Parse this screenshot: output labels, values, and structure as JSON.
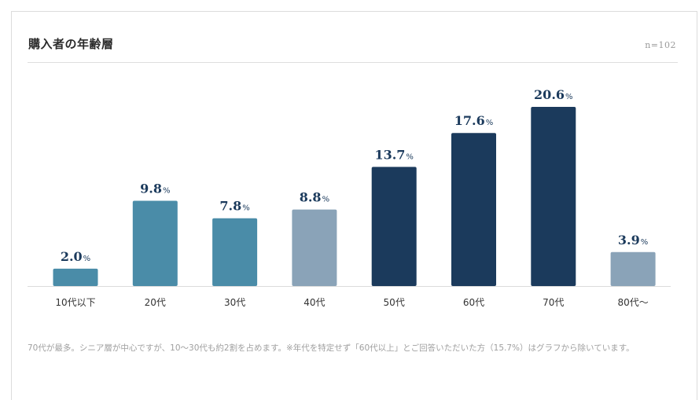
{
  "header": {
    "title": "購入者の年齢層",
    "sample_size": "n=102"
  },
  "chart_data": {
    "type": "bar",
    "title": "購入者の年齢層",
    "xlabel": "",
    "ylabel": "",
    "unit": "%",
    "ylim": [
      0,
      22
    ],
    "grid": false,
    "categories": [
      "10代以下",
      "20代",
      "30代",
      "40代",
      "50代",
      "60代",
      "70代",
      "80代〜"
    ],
    "values": [
      2.0,
      9.8,
      7.8,
      8.8,
      13.7,
      17.6,
      20.6,
      3.9
    ],
    "value_labels": [
      "2.0",
      "9.8",
      "7.8",
      "8.8",
      "13.7",
      "17.6",
      "20.6",
      "3.9"
    ],
    "bar_colors": [
      "#4a8ca8",
      "#4a8ca8",
      "#4a8ca8",
      "#8aa3b8",
      "#1b3a5c",
      "#1b3a5c",
      "#1b3a5c",
      "#8aa3b8"
    ],
    "label_color": "#1b3a5c"
  },
  "footnote": "70代が最多。シニア層が中心ですが、10〜30代も約2割を占めます。※年代を特定せず「60代以上」とご回答いただいた方（15.7%）はグラフから除いています。"
}
